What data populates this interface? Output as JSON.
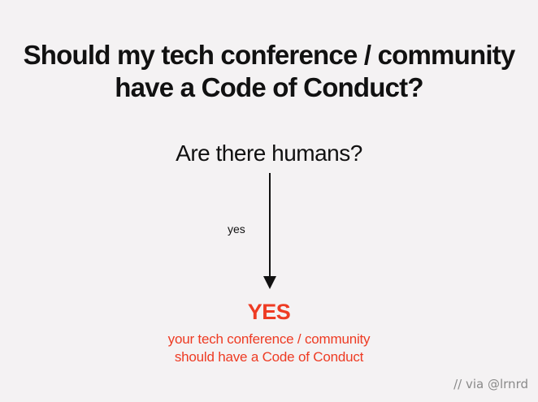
{
  "title": {
    "line1": "Should my tech conference / community",
    "line2": "have a Code of Conduct?"
  },
  "flow": {
    "question": "Are there humans?",
    "edge_label": "yes",
    "answer": "YES",
    "explanation": {
      "line1": "your tech conference / community",
      "line2": "should have a Code of Conduct"
    }
  },
  "credit": "// via @lrnrd",
  "colors": {
    "background": "#f4f2f3",
    "text": "#111111",
    "accent": "#ee3b23",
    "credit": "#8a8a8a"
  }
}
